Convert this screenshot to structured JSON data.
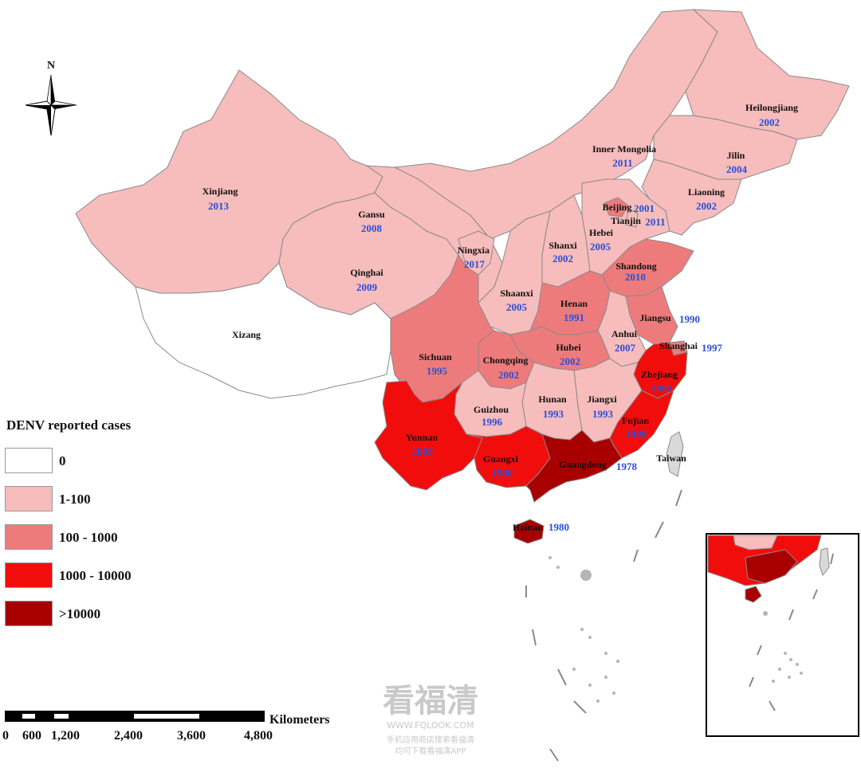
{
  "compass": {
    "north_label": "N"
  },
  "legend": {
    "title": "DENV reported cases",
    "items": [
      {
        "label": "0",
        "color": "#ffffff"
      },
      {
        "label": "1-100",
        "color": "#f7bcbc"
      },
      {
        "label": "100 - 1000",
        "color": "#ee7b7b"
      },
      {
        "label": "1000 - 10000",
        "color": "#f20d0d"
      },
      {
        "label": ">10000",
        "color": "#a80000"
      }
    ]
  },
  "provinces": [
    {
      "name": "Heilongjiang",
      "year": "2002"
    },
    {
      "name": "Inner Mongolia",
      "year": "2011"
    },
    {
      "name": "Jilin",
      "year": "2004"
    },
    {
      "name": "Liaoning",
      "year": "2002"
    },
    {
      "name": "Beijing",
      "year": "2001"
    },
    {
      "name": "Tianjin",
      "year": "2011"
    },
    {
      "name": "Xinjiang",
      "year": "2013"
    },
    {
      "name": "Gansu",
      "year": "2008"
    },
    {
      "name": "Ningxia",
      "year": "2017"
    },
    {
      "name": "Shanxi",
      "year": "2002"
    },
    {
      "name": "Hebei",
      "year": "2005"
    },
    {
      "name": "Shandong",
      "year": "2010"
    },
    {
      "name": "Qinghai",
      "year": "2009"
    },
    {
      "name": "Shaanxi",
      "year": "2005"
    },
    {
      "name": "Henan",
      "year": "1991"
    },
    {
      "name": "Jiangsu",
      "year": "1990"
    },
    {
      "name": "Xizang",
      "year": ""
    },
    {
      "name": "Anhui",
      "year": "2007"
    },
    {
      "name": "Shanghai",
      "year": "1997"
    },
    {
      "name": "Sichuan",
      "year": "1995"
    },
    {
      "name": "Chongqing",
      "year": "2002"
    },
    {
      "name": "Hubei",
      "year": "2002"
    },
    {
      "name": "Zhejiang",
      "year": "1992"
    },
    {
      "name": "Hunan",
      "year": "1993"
    },
    {
      "name": "Jiangxi",
      "year": "1993"
    },
    {
      "name": "Guizhou",
      "year": "1996"
    },
    {
      "name": "Fujian",
      "year": "1999"
    },
    {
      "name": "Yunnan",
      "year": "2003"
    },
    {
      "name": "Guangxi",
      "year": "1980"
    },
    {
      "name": "Guangdong",
      "year": "1978"
    },
    {
      "name": "Taiwan",
      "year": ""
    },
    {
      "name": "Hainan",
      "year": "1980"
    }
  ],
  "scale_bar": {
    "unit": "Kilometers",
    "ticks": [
      "0",
      "600",
      "1,200",
      "2,400",
      "3,600",
      "4,800"
    ]
  },
  "watermark": {
    "logo": "看福清",
    "url": "WWW.FQLOOK.COM",
    "line1": "手机应用商店搜索看福清",
    "line2": "均可下载看福清APP"
  }
}
